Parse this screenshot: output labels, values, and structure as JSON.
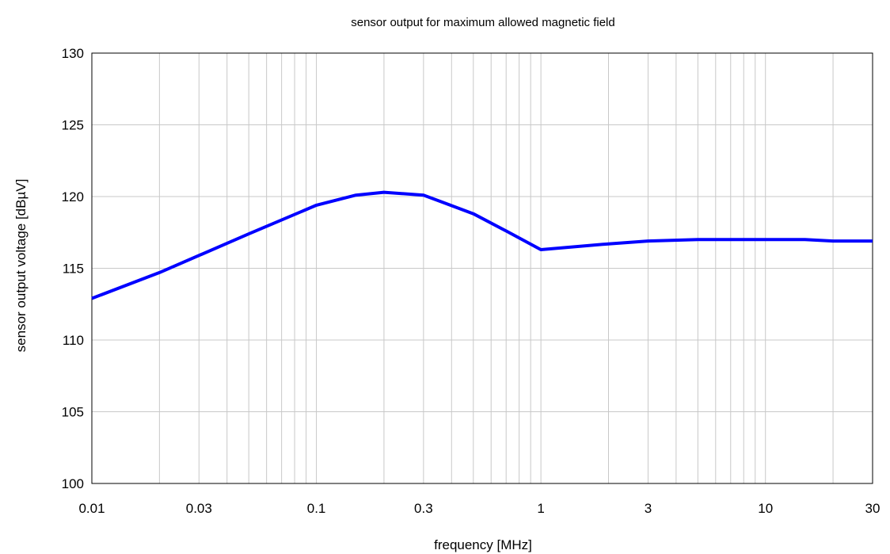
{
  "chart_data": {
    "type": "line",
    "title": "sensor output for maximum allowed magnetic field",
    "xlabel": "frequency [MHz]",
    "ylabel": "sensor output voltage [dBµV]",
    "x_scale": "log",
    "xlim": [
      0.01,
      30
    ],
    "ylim": [
      100,
      130
    ],
    "grid": true,
    "x_ticks": [
      {
        "value": 0.01,
        "label": "0.01"
      },
      {
        "value": 0.03,
        "label": "0.03"
      },
      {
        "value": 0.1,
        "label": "0.1"
      },
      {
        "value": 0.3,
        "label": "0.3"
      },
      {
        "value": 1,
        "label": "1"
      },
      {
        "value": 3,
        "label": "3"
      },
      {
        "value": 10,
        "label": "10"
      },
      {
        "value": 30,
        "label": "30"
      }
    ],
    "y_ticks": [
      {
        "value": 100,
        "label": "100"
      },
      {
        "value": 105,
        "label": "105"
      },
      {
        "value": 110,
        "label": "110"
      },
      {
        "value": 115,
        "label": "115"
      },
      {
        "value": 120,
        "label": "120"
      },
      {
        "value": 125,
        "label": "125"
      },
      {
        "value": 130,
        "label": "130"
      }
    ],
    "series": [
      {
        "color": "#0000ff",
        "x": [
          0.01,
          0.02,
          0.05,
          0.1,
          0.15,
          0.2,
          0.3,
          0.5,
          0.7,
          1.0,
          2.0,
          3.0,
          5.0,
          10.0,
          15.0,
          20.0,
          30.0
        ],
        "y": [
          112.9,
          114.7,
          117.4,
          119.4,
          120.1,
          120.3,
          120.1,
          118.8,
          117.6,
          116.3,
          116.7,
          116.9,
          117.0,
          117.0,
          117.0,
          116.9,
          116.9
        ]
      }
    ]
  }
}
